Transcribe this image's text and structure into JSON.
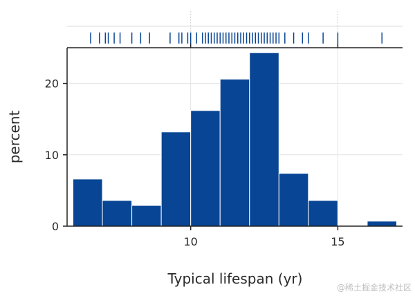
{
  "chart_data": {
    "type": "histogram",
    "title": "",
    "xlabel": "Typical lifespan (yr)",
    "ylabel": "percent",
    "xlim": [
      5.8,
      17.2
    ],
    "ylim": [
      0,
      25
    ],
    "xticks": [
      10,
      15
    ],
    "yticks": [
      0,
      10,
      20
    ],
    "grid": true,
    "bar_color": "#084594",
    "rug_color": "#084594",
    "bins": [
      {
        "x0": 6,
        "x1": 7,
        "value": 6.6
      },
      {
        "x0": 7,
        "x1": 8,
        "value": 3.6
      },
      {
        "x0": 8,
        "x1": 9,
        "value": 2.9
      },
      {
        "x0": 9,
        "x1": 10,
        "value": 13.2
      },
      {
        "x0": 10,
        "x1": 11,
        "value": 16.2
      },
      {
        "x0": 11,
        "x1": 12,
        "value": 20.6
      },
      {
        "x0": 12,
        "x1": 13,
        "value": 24.3
      },
      {
        "x0": 13,
        "x1": 14,
        "value": 7.4
      },
      {
        "x0": 14,
        "x1": 15,
        "value": 3.6
      },
      {
        "x0": 15,
        "x1": 16,
        "value": 0
      },
      {
        "x0": 16,
        "x1": 17,
        "value": 0.7
      }
    ],
    "rug_values": [
      6.6,
      6.9,
      7.1,
      7.2,
      7.4,
      7.6,
      8.0,
      8.3,
      8.6,
      9.3,
      9.6,
      9.7,
      9.9,
      10.0,
      10.2,
      10.4,
      10.5,
      10.6,
      10.7,
      10.8,
      10.9,
      11.0,
      11.1,
      11.2,
      11.3,
      11.4,
      11.5,
      11.6,
      11.7,
      11.8,
      11.9,
      12.0,
      12.1,
      12.2,
      12.3,
      12.4,
      12.5,
      12.6,
      12.7,
      12.8,
      12.9,
      13.0,
      13.2,
      13.5,
      13.8,
      14.0,
      14.5,
      15.0,
      16.5
    ]
  },
  "watermark": "@稀土掘金技术社区"
}
